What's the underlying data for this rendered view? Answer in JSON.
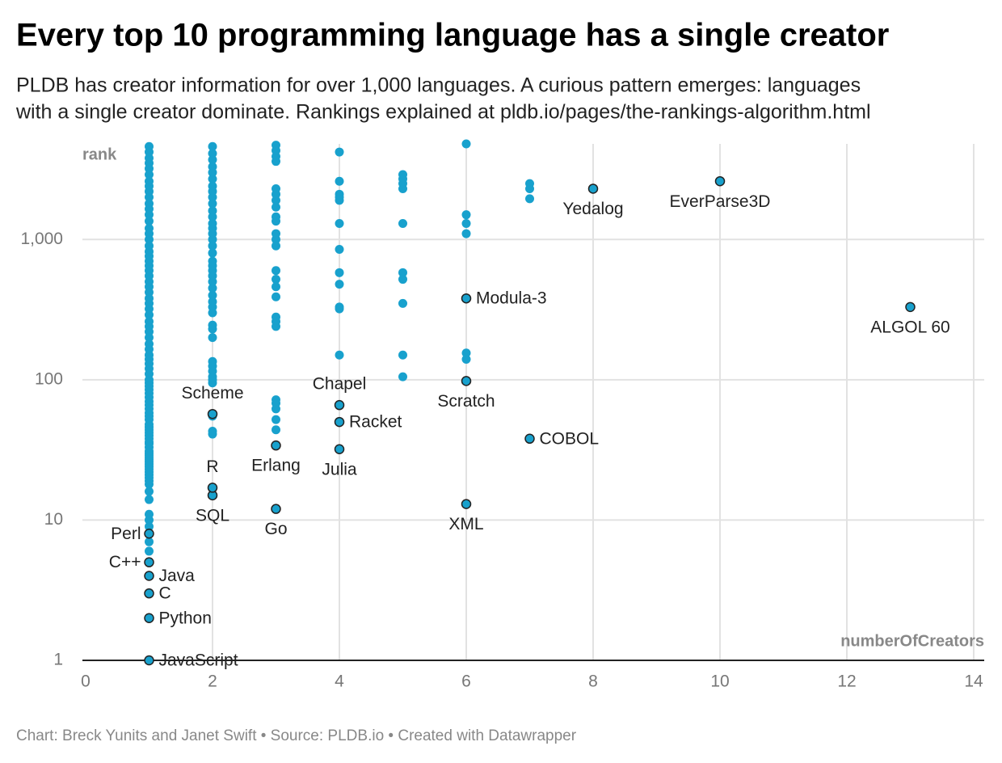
{
  "chart_data": {
    "type": "scatter",
    "title": "Every top 10 programming language has a single creator",
    "subtitle": [
      "PLDB has creator information for over 1,000 languages. A curious pattern emerges: languages",
      "with a single creator dominate. Rankings explained at pldb.io/pages/the-rankings-algorithm.html"
    ],
    "source": "Chart: Breck Yunits and Janet Swift • Source: PLDB.io • Created with Datawrapper",
    "xlabel": "numberOfCreators",
    "ylabel": "rank",
    "xlim": [
      0,
      14
    ],
    "ylim": [
      1,
      4800
    ],
    "xticks": [
      0,
      2,
      4,
      6,
      8,
      10,
      12,
      14
    ],
    "yticks": [
      1,
      10,
      100,
      {
        "value": 1000,
        "label": "1,000"
      }
    ],
    "log_y": true,
    "grid": true,
    "series": [
      {
        "color": "#18a1cd",
        "x": [
          1,
          1,
          1,
          1,
          1,
          1,
          1,
          1,
          1,
          1,
          1,
          1,
          1,
          1,
          1,
          1,
          1,
          1,
          1,
          1,
          1,
          1,
          1,
          1,
          1,
          1,
          1,
          1,
          1,
          1,
          1,
          1,
          1,
          1,
          1,
          1,
          1,
          1,
          1,
          1,
          1,
          1,
          1,
          1,
          1,
          1,
          1,
          1,
          1,
          1,
          1,
          1,
          1,
          1,
          1,
          1,
          1,
          1,
          1,
          1,
          1,
          1,
          1,
          1,
          1,
          1,
          1,
          1,
          1,
          1,
          1,
          1,
          1,
          1,
          1,
          1,
          1,
          1,
          1,
          1,
          1,
          1,
          1,
          1,
          2,
          2,
          2,
          2,
          2,
          2,
          2,
          2,
          2,
          2,
          2,
          2,
          2,
          2,
          2,
          2,
          2,
          2,
          2,
          2,
          2,
          2,
          2,
          2,
          2,
          2,
          2,
          2,
          2,
          2,
          2,
          2,
          2,
          2,
          2,
          2,
          2,
          2,
          2,
          2,
          3,
          3,
          3,
          3,
          3,
          3,
          3,
          3,
          3,
          3,
          3,
          3,
          3,
          3,
          3,
          3,
          3,
          3,
          3,
          3,
          3,
          3,
          3,
          3,
          3,
          4,
          4,
          4,
          4,
          4,
          4,
          4,
          4,
          4,
          4,
          4,
          4,
          5,
          5,
          5,
          5,
          5,
          5,
          5,
          5,
          5,
          5,
          6,
          6,
          6,
          6,
          6,
          6,
          7,
          7,
          7
        ],
        "values": [
          6,
          7,
          9,
          10,
          11,
          14,
          16,
          18,
          19,
          20,
          21,
          22,
          23,
          24,
          25,
          26,
          27,
          28,
          29,
          30,
          31,
          33,
          35,
          36,
          38,
          40,
          42,
          44,
          46,
          48,
          52,
          55,
          58,
          62,
          66,
          70,
          75,
          80,
          85,
          90,
          95,
          100,
          110,
          120,
          130,
          140,
          150,
          165,
          180,
          200,
          220,
          240,
          260,
          290,
          320,
          350,
          380,
          420,
          460,
          500,
          550,
          600,
          650,
          700,
          760,
          820,
          900,
          1000,
          1100,
          1200,
          1350,
          1500,
          1650,
          1800,
          2000,
          2200,
          2400,
          2600,
          2900,
          3200,
          3500,
          3800,
          4200,
          4600,
          41,
          43,
          55,
          95,
          100,
          105,
          115,
          125,
          135,
          200,
          230,
          245,
          300,
          330,
          360,
          400,
          450,
          500,
          550,
          600,
          650,
          700,
          800,
          900,
          1000,
          1100,
          1200,
          1300,
          1450,
          1600,
          1800,
          2000,
          2200,
          2400,
          2700,
          3000,
          3300,
          3700,
          4100,
          4600,
          44,
          52,
          62,
          68,
          72,
          240,
          260,
          280,
          390,
          460,
          520,
          600,
          900,
          1000,
          1100,
          1350,
          1450,
          1700,
          1900,
          2100,
          2300,
          3600,
          3900,
          4300,
          4700,
          150,
          320,
          330,
          480,
          580,
          850,
          1300,
          1900,
          2000,
          2100,
          2600,
          4200,
          105,
          150,
          350,
          520,
          580,
          1300,
          2300,
          2500,
          2700,
          2900,
          140,
          155,
          1100,
          1300,
          1500,
          4800,
          1950,
          2300,
          2500
        ]
      },
      {
        "color": "#18a1cd",
        "stroke": "#222222",
        "x": [
          1,
          1,
          1,
          1,
          1,
          1,
          2,
          2,
          2,
          3,
          3,
          4,
          4,
          4,
          6,
          6,
          6,
          7,
          8,
          10,
          13
        ],
        "values": [
          1,
          2,
          3,
          4,
          5,
          8,
          15,
          17,
          57,
          12,
          34,
          32,
          50,
          66,
          13,
          98,
          380,
          38,
          2300,
          2600,
          330
        ],
        "labels": [
          "JavaScript",
          "Python",
          "C",
          "Java",
          "C++",
          "Perl",
          "SQL",
          "R",
          "Scheme",
          "Go",
          "Erlang",
          "Julia",
          "Racket",
          "Chapel",
          "XML",
          "Scratch",
          "Modula-3",
          "COBOL",
          "Yedalog",
          "EverParse3D",
          "ALGOL 60"
        ]
      }
    ]
  }
}
